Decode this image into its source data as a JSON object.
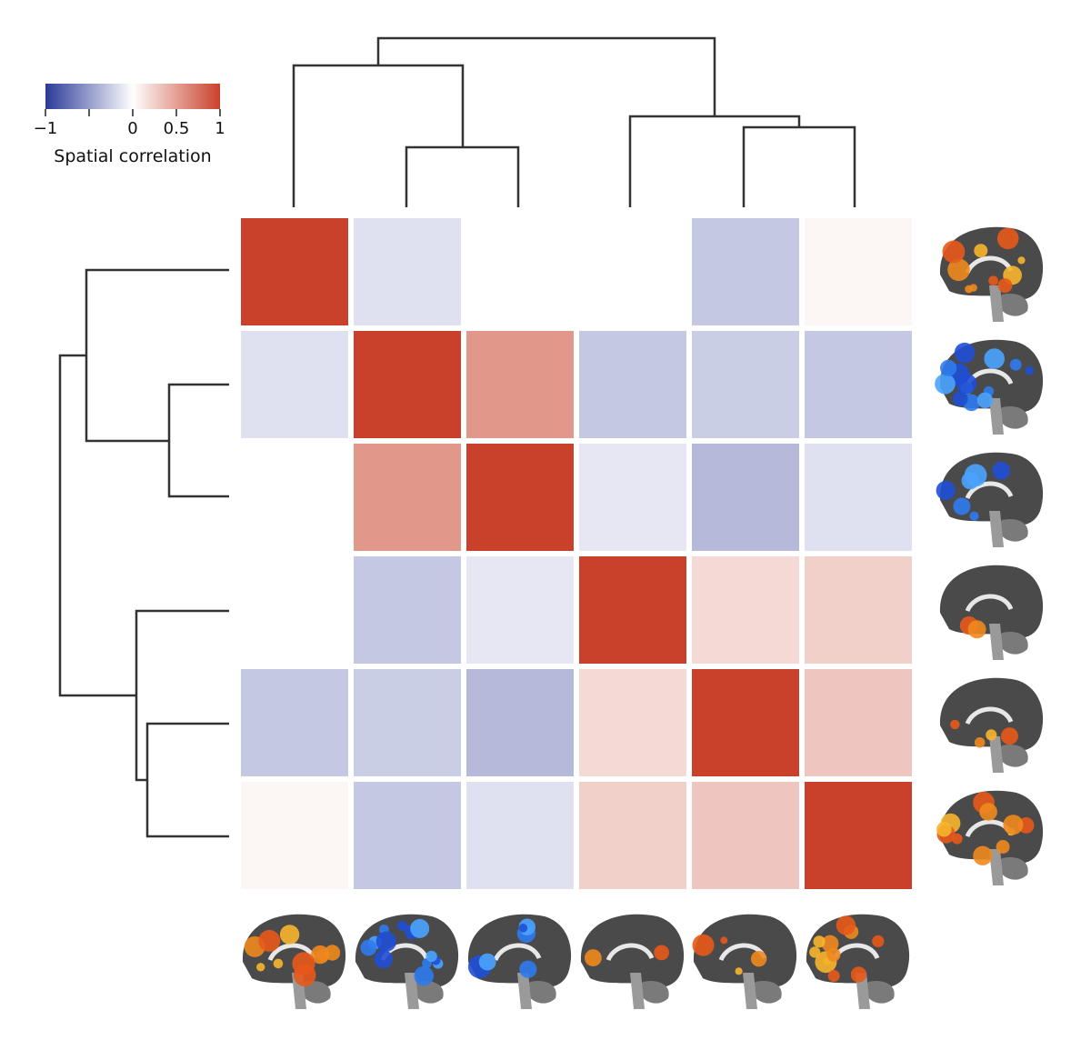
{
  "chart_data": {
    "type": "heatmap",
    "title": "",
    "xlabel": "",
    "ylabel": "",
    "n": 6,
    "values": [
      [
        1.0,
        -0.15,
        0.0,
        0.0,
        -0.28,
        0.05
      ],
      [
        -0.15,
        1.0,
        0.55,
        -0.28,
        -0.25,
        -0.28
      ],
      [
        0.0,
        0.55,
        1.0,
        -0.12,
        -0.35,
        -0.15
      ],
      [
        0.0,
        -0.28,
        -0.12,
        1.0,
        0.2,
        0.25
      ],
      [
        -0.28,
        -0.25,
        -0.35,
        0.2,
        1.0,
        0.3
      ],
      [
        0.05,
        -0.28,
        -0.15,
        0.25,
        0.3,
        1.0
      ]
    ],
    "colorbar": {
      "title": "Spatial correlation",
      "range": [
        -1,
        1
      ],
      "ticks": [
        -1,
        -0.5,
        0,
        0.5,
        1
      ],
      "tick_labels": [
        "−1",
        "",
        "0",
        "0.5",
        "1"
      ],
      "colors": {
        "negative": "#2b3a98",
        "zero": "#ffffff",
        "positive": "#c9412b"
      }
    },
    "brain_maps": {
      "colors": [
        "warm",
        "cool",
        "cool",
        "warm",
        "warm",
        "warm"
      ],
      "coverage": [
        0.45,
        0.6,
        0.25,
        0.05,
        0.2,
        0.5
      ]
    }
  }
}
